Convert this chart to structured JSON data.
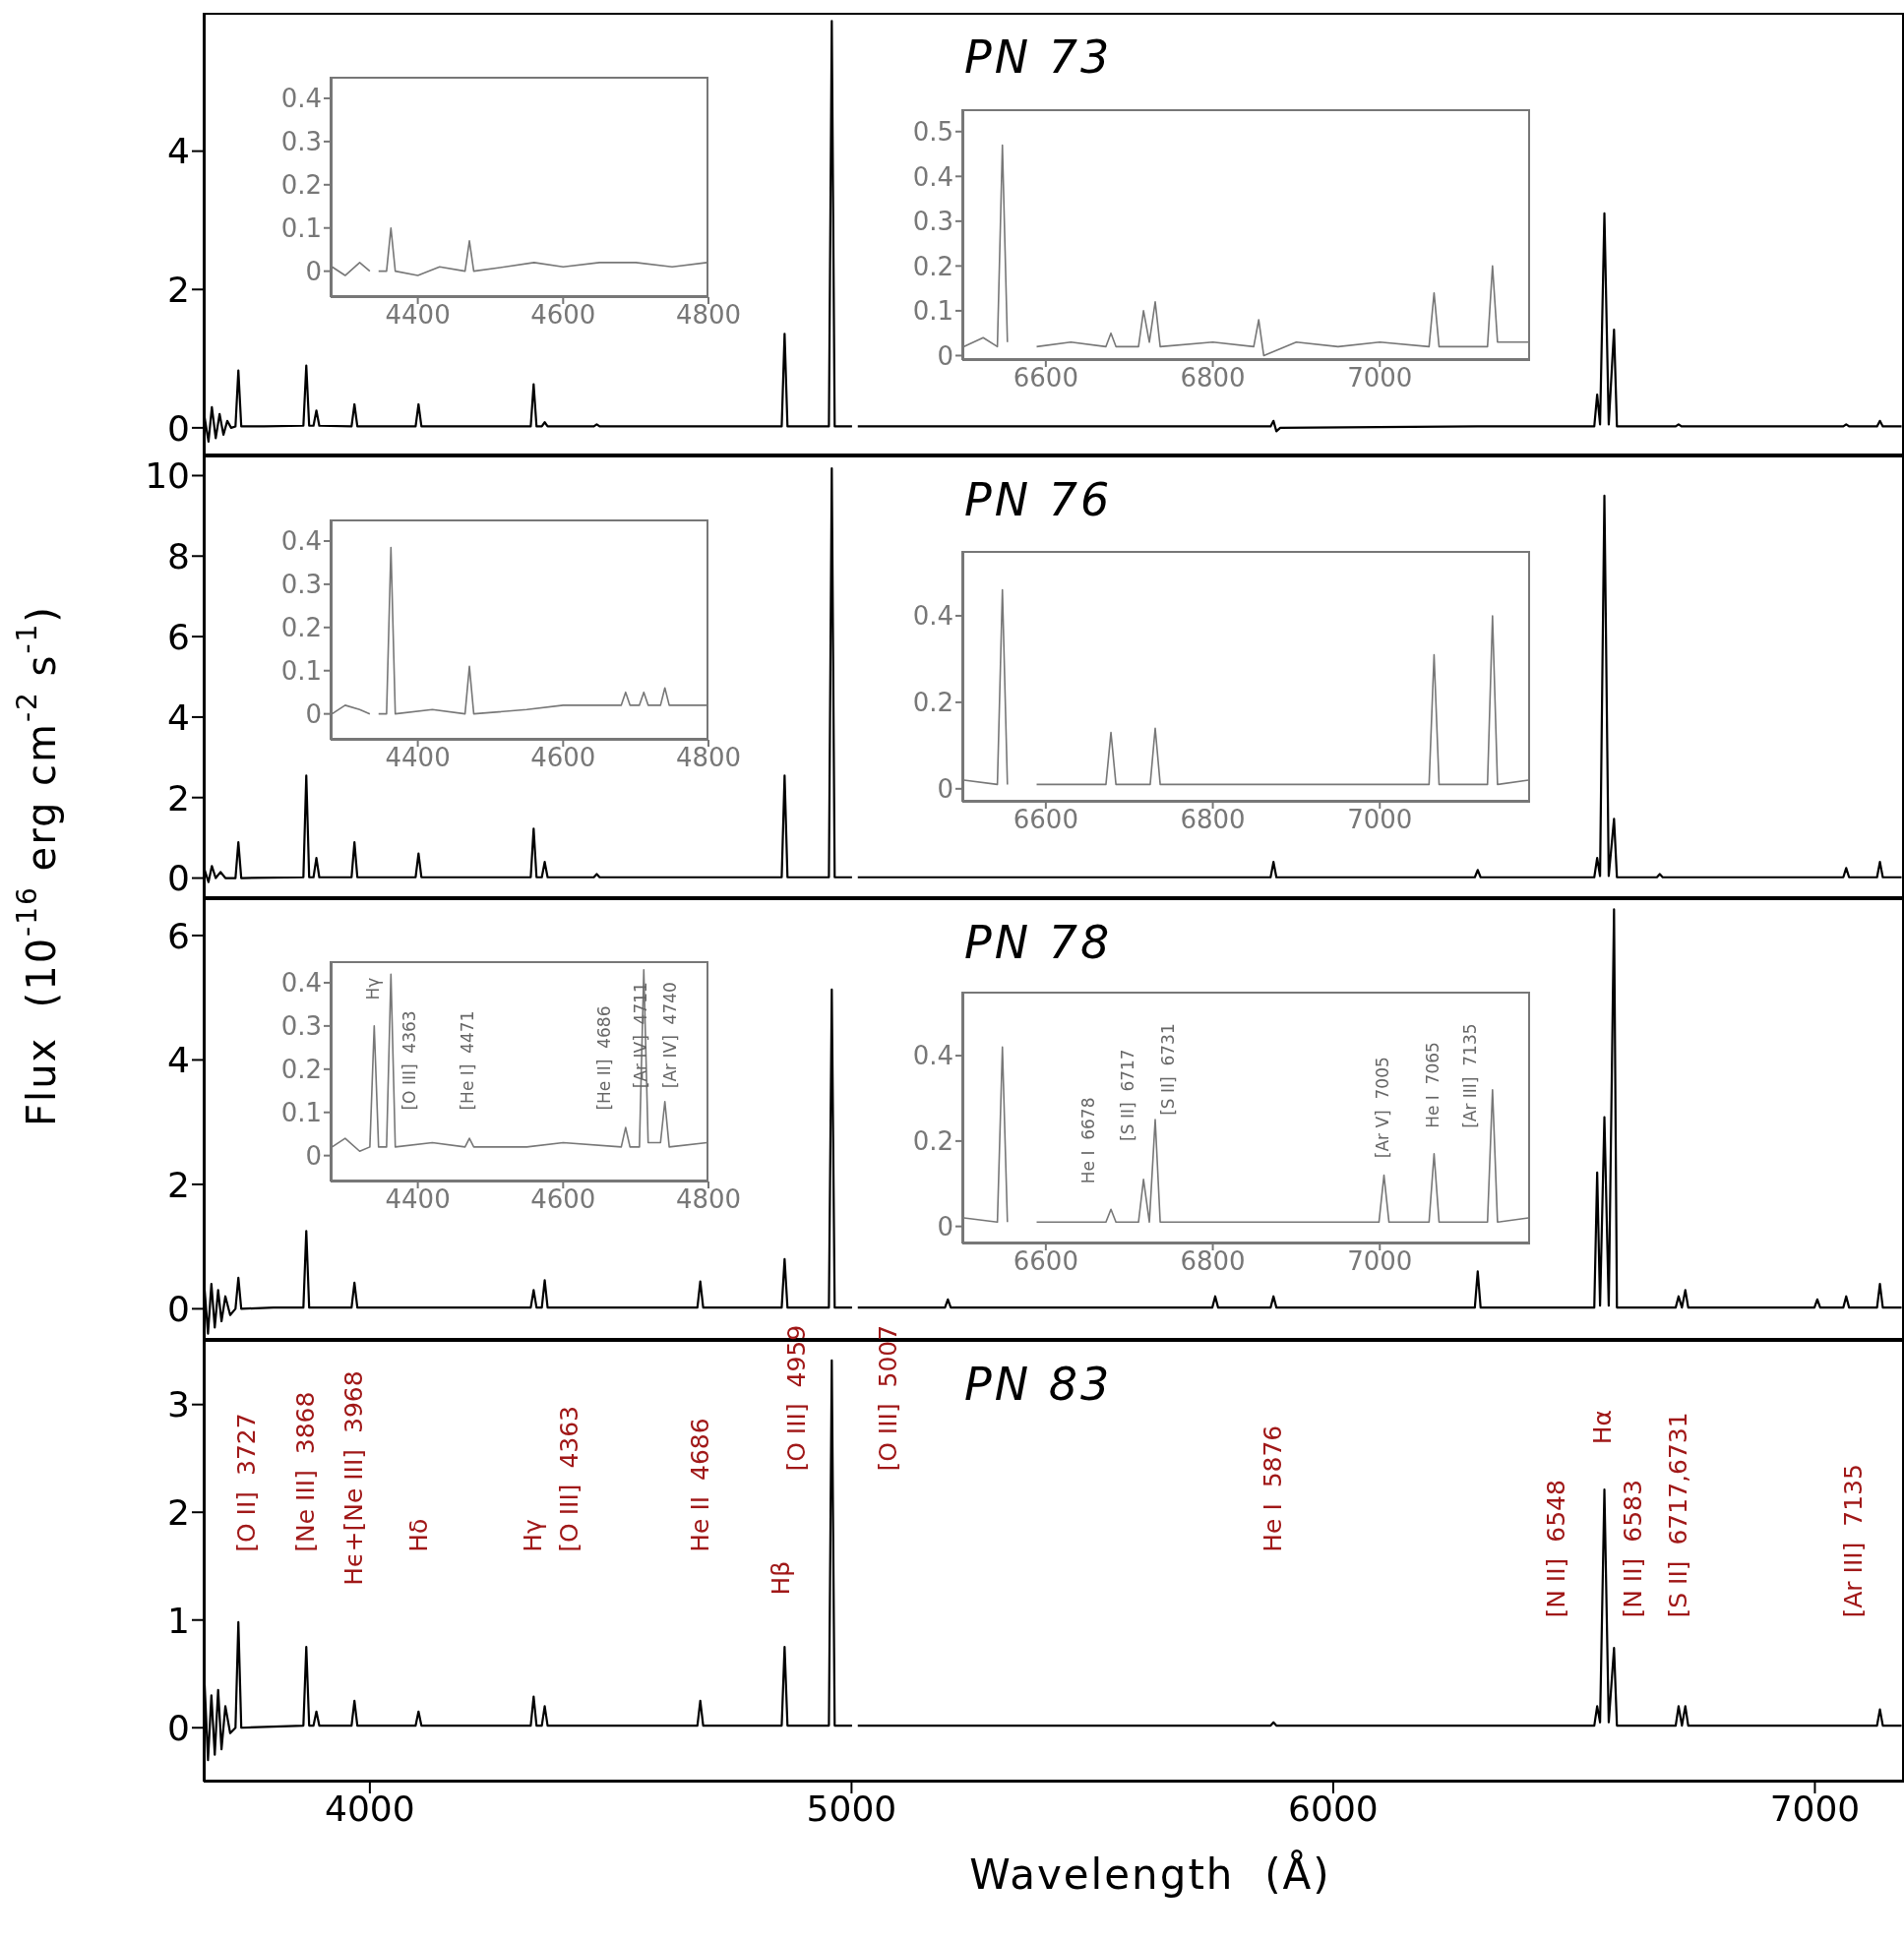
{
  "chart_data": [
    {
      "type": "line",
      "title": "PN 73",
      "color": "#000000",
      "xlim": [
        3655,
        7185
      ],
      "ylim": [
        -0.4,
        6.0
      ],
      "xticks": [
        4000,
        5000,
        6000,
        7000
      ],
      "yticks": [
        0,
        2,
        4
      ],
      "tick_labels": "y",
      "x": [
        3657,
        3665,
        3672,
        3680,
        3688,
        3696,
        3704,
        3712,
        3721,
        3727,
        3733,
        3780,
        3862,
        3868,
        3874,
        3883,
        3889,
        3895,
        3962,
        3968,
        3974,
        4095,
        4101,
        4107,
        4334,
        4340,
        4346,
        4357,
        4363,
        4369,
        4465,
        4471,
        4477,
        4855,
        4861,
        4867,
        4953,
        4959,
        4965,
        5001,
        5007,
        5013,
        5500,
        5870,
        5876,
        5882,
        5890,
        6300,
        6542,
        6548,
        6554,
        6563,
        6572,
        6583,
        6589,
        6711,
        6717,
        6723,
        7059,
        7065,
        7071,
        7129,
        7135,
        7141,
        7180
      ],
      "values": [
        0.15,
        -0.2,
        0.3,
        -0.15,
        0.2,
        -0.1,
        0.1,
        0.0,
        0.02,
        0.83,
        0.02,
        0.02,
        0.03,
        0.9,
        0.03,
        0.03,
        0.25,
        0.03,
        0.02,
        0.34,
        0.02,
        0.02,
        0.34,
        0.02,
        0.02,
        0.63,
        0.02,
        0.02,
        0.08,
        0.02,
        0.02,
        0.05,
        0.02,
        0.02,
        1.36,
        0.02,
        0.02,
        5.88,
        0.02,
        0.02,
        null,
        0.02,
        0.02,
        0.02,
        0.1,
        -0.05,
        0.0,
        0.02,
        0.02,
        0.48,
        0.05,
        3.1,
        0.05,
        1.42,
        0.02,
        0.02,
        0.05,
        0.02,
        0.02,
        0.05,
        0.02,
        0.02,
        0.1,
        0.02,
        0.02
      ]
    },
    {
      "type": "line",
      "title": "PN 76",
      "ylabel": "Flux  (10$^{-16}$ erg cm$^{-2}$ s$^{-1}$)",
      "color": "#000000",
      "xlim": [
        3655,
        7185
      ],
      "ylim": [
        -0.5,
        10.5
      ],
      "xticks": [
        4000,
        5000,
        6000,
        7000
      ],
      "yticks": [
        0,
        2,
        4,
        6,
        8,
        10
      ],
      "tick_labels": "y",
      "x": [
        3657,
        3665,
        3672,
        3680,
        3690,
        3700,
        3712,
        3721,
        3727,
        3733,
        3862,
        3868,
        3874,
        3883,
        3889,
        3895,
        3962,
        3968,
        3974,
        4095,
        4101,
        4107,
        4334,
        4340,
        4346,
        4357,
        4363,
        4369,
        4465,
        4471,
        4477,
        4855,
        4861,
        4867,
        4953,
        4959,
        4965,
        5001,
        5007,
        5013,
        5870,
        5876,
        5882,
        6294,
        6300,
        6306,
        6542,
        6548,
        6554,
        6563,
        6572,
        6583,
        6589,
        6672,
        6678,
        6684,
        7059,
        7065,
        7071,
        7129,
        7135,
        7141,
        7180
      ],
      "values": [
        0.2,
        -0.1,
        0.3,
        0.0,
        0.15,
        0.0,
        0.0,
        0.0,
        0.89,
        0.0,
        0.02,
        2.55,
        0.02,
        0.02,
        0.5,
        0.02,
        0.02,
        0.89,
        0.02,
        0.02,
        0.61,
        0.02,
        0.02,
        1.23,
        0.02,
        0.02,
        0.4,
        0.02,
        0.02,
        0.1,
        0.02,
        0.02,
        2.55,
        0.02,
        0.02,
        10.18,
        0.02,
        0.02,
        null,
        0.02,
        0.02,
        0.4,
        0.02,
        0.02,
        0.2,
        0.02,
        0.02,
        0.5,
        0.05,
        9.5,
        0.05,
        1.47,
        0.02,
        0.02,
        0.1,
        0.02,
        0.02,
        0.25,
        0.02,
        0.02,
        0.4,
        0.02,
        0.02
      ]
    },
    {
      "type": "line",
      "title": "PN 78",
      "color": "#000000",
      "xlim": [
        3655,
        7185
      ],
      "ylim": [
        -0.5,
        6.6
      ],
      "xticks": [
        4000,
        5000,
        6000,
        7000
      ],
      "yticks": [
        0,
        2,
        4,
        6
      ],
      "tick_labels": "y",
      "x": [
        3657,
        3664,
        3671,
        3678,
        3685,
        3692,
        3700,
        3710,
        3721,
        3727,
        3733,
        3800,
        3862,
        3868,
        3874,
        3962,
        3968,
        3974,
        4334,
        4340,
        4346,
        4357,
        4363,
        4369,
        4680,
        4686,
        4692,
        4855,
        4861,
        4867,
        4953,
        4959,
        4965,
        5001,
        5007,
        5013,
        5194,
        5200,
        5206,
        5749,
        5755,
        5761,
        5870,
        5876,
        5882,
        6294,
        6300,
        6306,
        6542,
        6548,
        6554,
        6563,
        6572,
        6583,
        6589,
        6711,
        6717,
        6724,
        6731,
        6737,
        6999,
        7005,
        7011,
        7059,
        7065,
        7071,
        7129,
        7135,
        7141,
        7180
      ],
      "values": [
        0.3,
        -0.4,
        0.4,
        -0.3,
        0.3,
        -0.2,
        0.2,
        -0.1,
        0.0,
        0.5,
        0.0,
        0.02,
        0.02,
        1.25,
        0.02,
        0.02,
        0.42,
        0.02,
        0.02,
        0.3,
        0.02,
        0.02,
        0.46,
        0.02,
        0.02,
        0.44,
        0.02,
        0.02,
        0.8,
        0.02,
        0.02,
        5.13,
        0.02,
        0.02,
        null,
        0.02,
        0.02,
        0.15,
        0.02,
        0.02,
        0.2,
        0.02,
        0.02,
        0.2,
        0.02,
        0.02,
        0.6,
        0.02,
        0.02,
        2.19,
        0.05,
        3.08,
        0.05,
        6.42,
        0.02,
        0.02,
        0.2,
        0.02,
        0.3,
        0.02,
        0.02,
        0.15,
        0.02,
        0.02,
        0.2,
        0.02,
        0.02,
        0.4,
        0.02,
        0.02
      ]
    },
    {
      "type": "line",
      "title": "PN 83",
      "xlabel": "Wavelength  (Å)",
      "color": "#000000",
      "xlim": [
        3655,
        7185
      ],
      "ylim": [
        -0.5,
        3.6
      ],
      "xticks": [
        4000,
        5000,
        6000,
        7000
      ],
      "yticks": [
        0,
        1,
        2,
        3
      ],
      "x": [
        3657,
        3664,
        3671,
        3678,
        3685,
        3692,
        3700,
        3710,
        3721,
        3727,
        3733,
        3862,
        3868,
        3874,
        3883,
        3889,
        3895,
        3962,
        3968,
        3974,
        4095,
        4101,
        4107,
        4334,
        4340,
        4346,
        4357,
        4363,
        4369,
        4680,
        4686,
        4692,
        4855,
        4861,
        4867,
        4953,
        4959,
        4965,
        5001,
        5007,
        5013,
        5870,
        5876,
        5882,
        6542,
        6548,
        6554,
        6563,
        6572,
        6583,
        6589,
        6711,
        6717,
        6724,
        6731,
        6737,
        7129,
        7135,
        7141,
        7180
      ],
      "values": [
        0.4,
        -0.3,
        0.3,
        -0.25,
        0.35,
        -0.2,
        0.2,
        -0.05,
        0.0,
        0.98,
        0.0,
        0.02,
        0.75,
        0.02,
        0.02,
        0.15,
        0.02,
        0.02,
        0.25,
        0.02,
        0.02,
        0.15,
        0.02,
        0.02,
        0.29,
        0.02,
        0.02,
        0.2,
        0.02,
        0.02,
        0.25,
        0.02,
        0.02,
        0.75,
        0.02,
        0.02,
        3.41,
        0.02,
        0.02,
        null,
        0.02,
        0.02,
        0.05,
        0.02,
        0.02,
        0.2,
        0.05,
        2.21,
        0.05,
        0.74,
        0.02,
        0.02,
        0.2,
        0.02,
        0.2,
        0.02,
        0.02,
        0.17,
        0.02,
        0.02
      ],
      "annotations": [
        "[O II]  3727",
        "[Ne III]  3868",
        "Hϵ+[Ne III]  3968",
        "Hδ",
        "Hγ",
        "[O III]  4363",
        "He II  4686",
        "Hβ",
        "[O III]  4959",
        "[O III]  5007",
        "He I  5876",
        "[N II]  6548",
        "Hα",
        "[N II]  6583",
        "[S II]  6717,6731",
        "[Ar III]  7135"
      ]
    },
    {
      "type": "line",
      "color": "#777777",
      "xlim": [
        4280,
        4800
      ],
      "ylim": [
        -0.06,
        0.45
      ],
      "xticks": [
        4400,
        4600,
        4800
      ],
      "yticks": [
        0,
        0.1,
        0.2,
        0.3,
        0.4
      ],
      "x": [
        4282,
        4300,
        4320,
        4334,
        4340,
        4346,
        4357,
        4363,
        4369,
        4400,
        4430,
        4465,
        4471,
        4477,
        4520,
        4560,
        4600,
        4650,
        4700,
        4750,
        4798
      ],
      "values": [
        0.01,
        -0.01,
        0.02,
        0.0,
        null,
        0.0,
        0.0,
        0.1,
        0.0,
        -0.01,
        0.01,
        0.0,
        0.07,
        0.0,
        0.01,
        0.02,
        0.01,
        0.02,
        0.02,
        0.01,
        0.02
      ]
    },
    {
      "type": "line",
      "color": "#777777",
      "xlim": [
        6500,
        7180
      ],
      "ylim": [
        -0.01,
        0.55
      ],
      "xticks": [
        6600,
        6800,
        7000
      ],
      "yticks": [
        0,
        0.1,
        0.2,
        0.3,
        0.4,
        0.5
      ],
      "x": [
        6502,
        6525,
        6542,
        6548,
        6554,
        6563,
        6583,
        6589,
        6630,
        6672,
        6678,
        6684,
        6711,
        6717,
        6724,
        6731,
        6737,
        6800,
        6849,
        6855,
        6861,
        6900,
        6950,
        7000,
        7059,
        7065,
        7071,
        7129,
        7135,
        7141,
        7178
      ],
      "values": [
        0.02,
        0.04,
        0.02,
        0.47,
        0.03,
        null,
        null,
        0.02,
        0.03,
        0.02,
        0.05,
        0.02,
        0.02,
        0.1,
        0.03,
        0.12,
        0.02,
        0.03,
        0.02,
        0.08,
        0.0,
        0.03,
        0.02,
        0.03,
        0.02,
        0.14,
        0.02,
        0.02,
        0.2,
        0.03,
        0.03
      ]
    },
    {
      "type": "line",
      "color": "#777777",
      "xlim": [
        4280,
        4800
      ],
      "ylim": [
        -0.06,
        0.45
      ],
      "xticks": [
        4400,
        4600,
        4800
      ],
      "yticks": [
        0,
        0.1,
        0.2,
        0.3,
        0.4
      ],
      "x": [
        4282,
        4300,
        4320,
        4334,
        4340,
        4346,
        4357,
        4363,
        4369,
        4420,
        4465,
        4471,
        4477,
        4550,
        4600,
        4680,
        4686,
        4692,
        4705,
        4711,
        4717,
        4734,
        4740,
        4746,
        4798
      ],
      "values": [
        0.0,
        0.02,
        0.01,
        0.0,
        null,
        0.0,
        0.0,
        0.385,
        0.0,
        0.01,
        0.0,
        0.11,
        0.0,
        0.01,
        0.02,
        0.02,
        0.05,
        0.02,
        0.02,
        0.05,
        0.02,
        0.02,
        0.06,
        0.02,
        0.02
      ]
    },
    {
      "type": "line",
      "color": "#777777",
      "xlim": [
        6500,
        7180
      ],
      "ylim": [
        -0.03,
        0.55
      ],
      "xticks": [
        6600,
        6800,
        7000
      ],
      "yticks": [
        0,
        0.2,
        0.4
      ],
      "x": [
        6502,
        6542,
        6548,
        6554,
        6563,
        6583,
        6589,
        6672,
        6678,
        6684,
        6725,
        6731,
        6737,
        6850,
        6950,
        7059,
        7065,
        7071,
        7129,
        7135,
        7141,
        7178
      ],
      "values": [
        0.02,
        0.01,
        0.46,
        0.01,
        null,
        null,
        0.01,
        0.01,
        0.13,
        0.01,
        0.01,
        0.14,
        0.01,
        0.01,
        0.01,
        0.01,
        0.31,
        0.01,
        0.01,
        0.4,
        0.01,
        0.02
      ]
    },
    {
      "type": "line",
      "color": "#777777",
      "xlim": [
        4280,
        4800
      ],
      "ylim": [
        -0.06,
        0.45
      ],
      "xticks": [
        4400,
        4600,
        4800
      ],
      "yticks": [
        0,
        0.1,
        0.2,
        0.3,
        0.4
      ],
      "x": [
        4282,
        4300,
        4320,
        4334,
        4340,
        4346,
        4357,
        4363,
        4369,
        4420,
        4465,
        4471,
        4477,
        4550,
        4600,
        4680,
        4686,
        4692,
        4705,
        4711,
        4717,
        4734,
        4740,
        4746,
        4798
      ],
      "values": [
        0.02,
        0.04,
        0.01,
        0.02,
        0.3,
        0.02,
        0.02,
        0.42,
        0.02,
        0.03,
        0.02,
        0.04,
        0.02,
        0.02,
        0.03,
        0.02,
        0.065,
        0.02,
        0.02,
        0.43,
        0.03,
        0.03,
        0.125,
        0.02,
        0.03
      ],
      "annotations": [
        "Hγ",
        "[O III]  4363",
        "[He I]  4471",
        "[He II]  4686",
        "[Ar IV]  4711",
        "[Ar IV]  4740"
      ]
    },
    {
      "type": "line",
      "color": "#777777",
      "xlim": [
        6500,
        7180
      ],
      "ylim": [
        -0.04,
        0.55
      ],
      "xticks": [
        6600,
        6800,
        7000
      ],
      "yticks": [
        0,
        0.2,
        0.4
      ],
      "x": [
        6502,
        6542,
        6548,
        6554,
        6563,
        6583,
        6589,
        6672,
        6678,
        6684,
        6711,
        6717,
        6724,
        6731,
        6737,
        6850,
        6999,
        7005,
        7011,
        7059,
        7065,
        7071,
        7129,
        7135,
        7141,
        7178
      ],
      "values": [
        0.02,
        0.01,
        0.42,
        0.01,
        null,
        null,
        0.01,
        0.01,
        0.04,
        0.01,
        0.01,
        0.11,
        0.01,
        0.25,
        0.01,
        0.01,
        0.01,
        0.12,
        0.01,
        0.01,
        0.17,
        0.01,
        0.01,
        0.32,
        0.01,
        0.02
      ],
      "annotations": [
        "He I  6678",
        "[S II]  6717",
        "[S II]  6731",
        "[Ar V]  7005",
        "He I  7065",
        "[Ar III]  7135"
      ]
    }
  ]
}
